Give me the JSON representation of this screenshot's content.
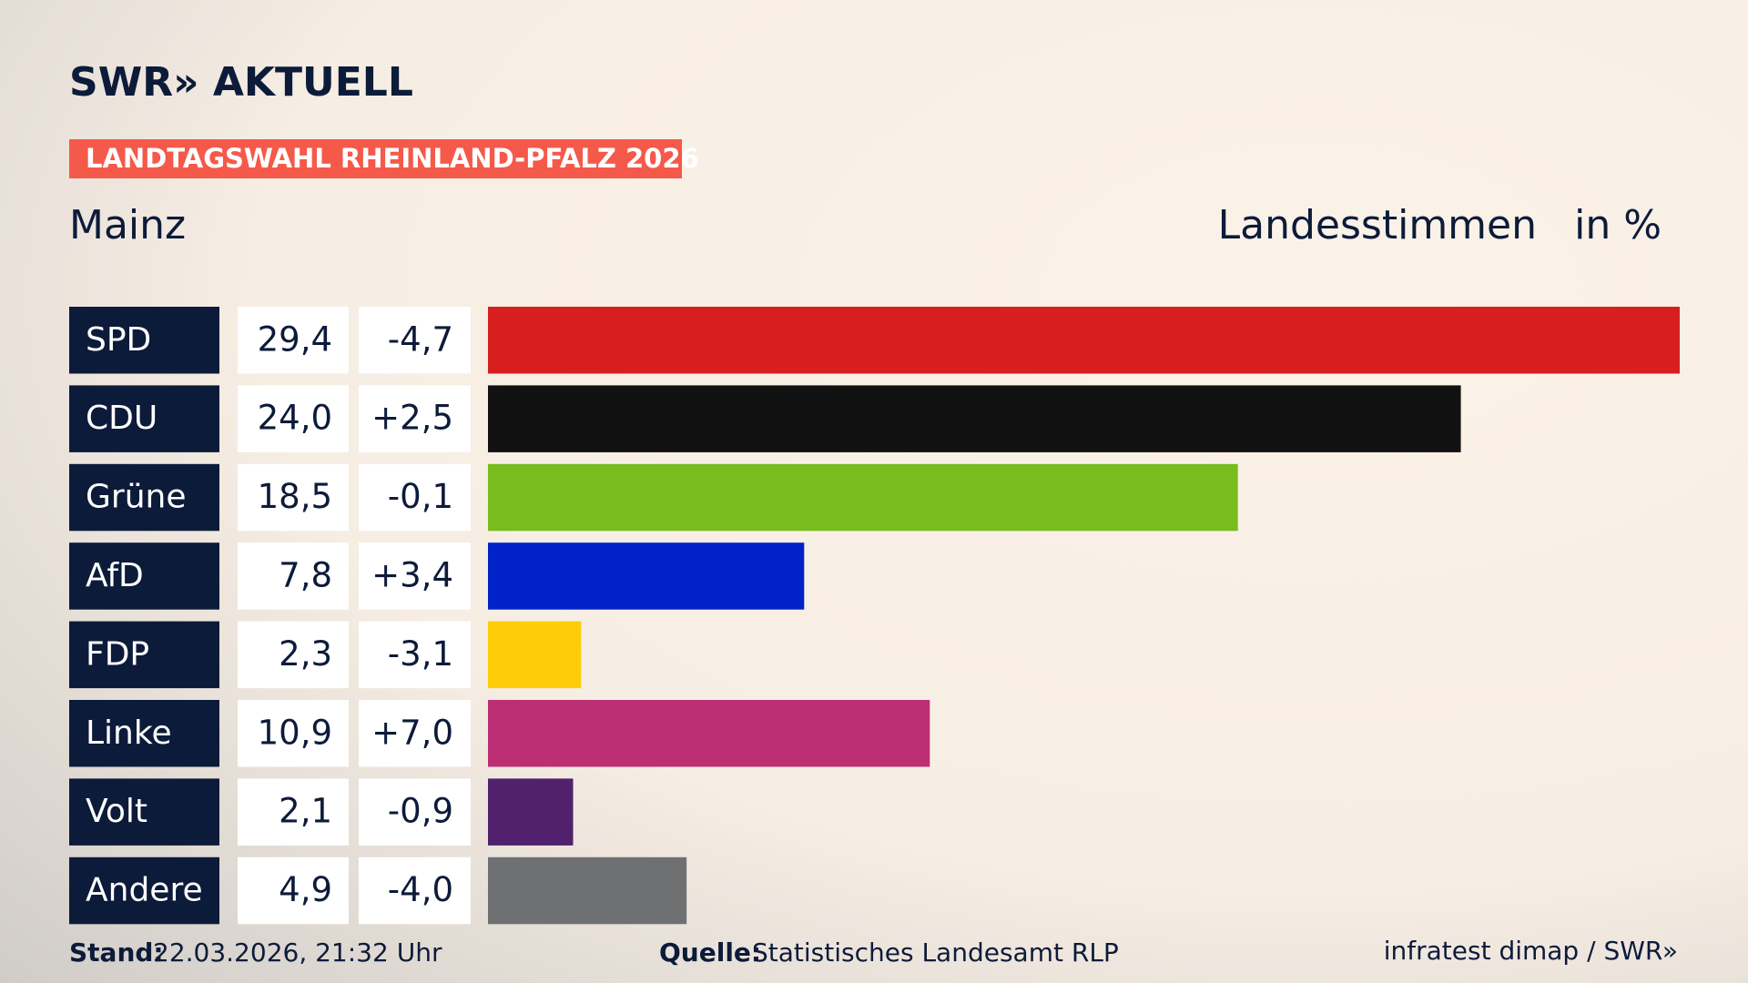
{
  "brand": "SWR» AKTUELL",
  "chart_data": {
    "type": "bar",
    "orientation": "horizontal",
    "title": "LANDTAGSWAHL RHEINLAND-PFALZ 2026",
    "subtitle": "Mainz",
    "value_label": "Landesstimmen",
    "unit": "in %",
    "categories": [
      "SPD",
      "CDU",
      "Grüne",
      "AfD",
      "FDP",
      "Linke",
      "Volt",
      "Andere"
    ],
    "values": [
      29.4,
      24.0,
      18.5,
      7.8,
      2.3,
      10.9,
      2.1,
      4.9
    ],
    "value_labels": [
      "29,4",
      "24,0",
      "18,5",
      "7,8",
      "2,3",
      "10,9",
      "2,1",
      "4,9"
    ],
    "changes": [
      -4.7,
      2.5,
      -0.1,
      3.4,
      -3.1,
      7.0,
      -0.9,
      -4.0
    ],
    "change_labels": [
      "-4,7",
      "+2,5",
      "-0,1",
      "+3,4",
      "-3,1",
      "+7,0",
      "-0,9",
      "-4,0"
    ],
    "colors": [
      "#d71f1f",
      "#111111",
      "#78bc1e",
      "#0022c8",
      "#ffcc0a",
      "#bc2f74",
      "#51216e",
      "#6f7072"
    ]
  },
  "footer": {
    "stand_label": "Stand:",
    "stand": "22.03.2026, 21:32 Uhr",
    "source_label": "Quelle:",
    "source": "Statistisches Landesamt RLP",
    "credit": "infratest dimap / SWR»"
  }
}
